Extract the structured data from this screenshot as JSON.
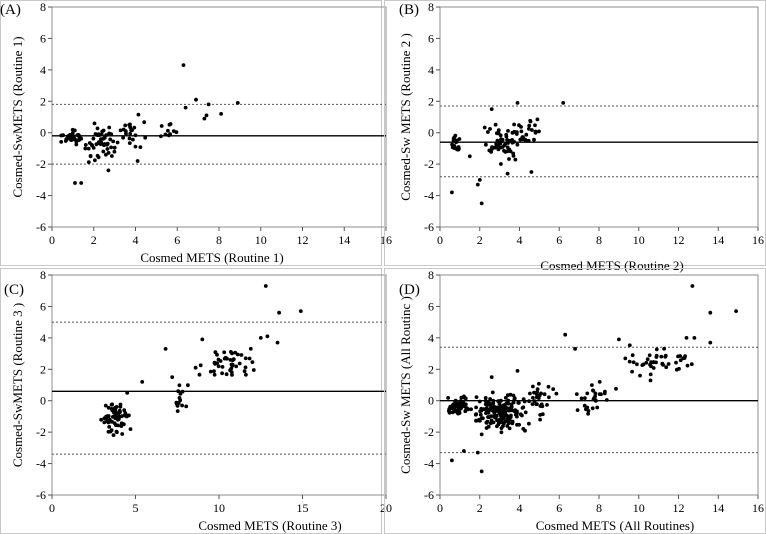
{
  "chart_data": [
    {
      "type": "scatter",
      "panel_label": "(A)",
      "title": "",
      "xlabel": "Cosmed METS (Routine 1)",
      "ylabel": "Cosmed-SwMETS (Routine 1)",
      "xlim": [
        0,
        16
      ],
      "ylim": [
        -6,
        8
      ],
      "xticks": [
        "0",
        "2",
        "4",
        "6",
        "8",
        "10",
        "12",
        "14",
        "16"
      ],
      "yticks": [
        "8",
        "6",
        "4",
        "2",
        "0",
        "-2",
        "-4",
        "-6"
      ],
      "mean_line": -0.2,
      "limits_of_agreement": [
        1.8,
        -2.0
      ],
      "seed": 11,
      "clusters": [
        {
          "n": 40,
          "x": [
            0.4,
            1.6
          ],
          "y": [
            -0.9,
            0.4
          ]
        },
        {
          "n": 55,
          "x": [
            1.4,
            3.2
          ],
          "y": [
            -2.3,
            0.8
          ]
        },
        {
          "n": 22,
          "x": [
            2.8,
            4.6
          ],
          "y": [
            -1.6,
            1.3
          ]
        },
        {
          "n": 10,
          "x": [
            4.5,
            6.5
          ],
          "y": [
            -0.8,
            1.0
          ]
        }
      ],
      "points": [
        [
          1.1,
          -3.2
        ],
        [
          1.4,
          -3.2
        ],
        [
          6.3,
          4.3
        ],
        [
          6.9,
          2.1
        ],
        [
          7.5,
          1.8
        ],
        [
          8.9,
          1.9
        ],
        [
          7.4,
          1.1
        ],
        [
          8.1,
          1.2
        ],
        [
          6.4,
          1.6
        ],
        [
          7.3,
          0.9
        ],
        [
          2.7,
          -2.4
        ],
        [
          4.1,
          -1.8
        ]
      ]
    },
    {
      "type": "scatter",
      "panel_label": "(B)",
      "title": "",
      "xlabel": "Cosmed METS (Routine 2)",
      "ylabel": "Cosmed-Sw METS (Routine 2 )",
      "xlim": [
        0,
        16
      ],
      "ylim": [
        -6,
        8
      ],
      "xticks": [
        "0",
        "2",
        "4",
        "6",
        "8",
        "10",
        "12",
        "14",
        "16"
      ],
      "yticks": [
        "8",
        "6",
        "4",
        "2",
        "0",
        "-2",
        "-4",
        "-6"
      ],
      "mean_line": -0.6,
      "limits_of_agreement": [
        1.7,
        -2.8
      ],
      "seed": 23,
      "clusters": [
        {
          "n": 18,
          "x": [
            0.5,
            1.1
          ],
          "y": [
            -1.4,
            0.1
          ]
        },
        {
          "n": 60,
          "x": [
            2.0,
            4.4
          ],
          "y": [
            -2.2,
            1.0
          ]
        },
        {
          "n": 25,
          "x": [
            3.6,
            5.4
          ],
          "y": [
            -1.0,
            1.2
          ]
        }
      ],
      "points": [
        [
          0.6,
          -3.8
        ],
        [
          2.1,
          -4.5
        ],
        [
          1.9,
          -3.3
        ],
        [
          2.0,
          -3.0
        ],
        [
          2.6,
          1.5
        ],
        [
          3.9,
          1.9
        ],
        [
          6.2,
          1.9
        ],
        [
          3.4,
          -2.6
        ],
        [
          4.6,
          -2.5
        ],
        [
          1.5,
          -1.5
        ]
      ]
    },
    {
      "type": "scatter",
      "panel_label": "(C)",
      "title": "",
      "xlabel": "Cosmed METS (Routine 3)",
      "ylabel": "Cosmed-SwMETS (Routine 3 )",
      "xlim": [
        0,
        20
      ],
      "ylim": [
        -6,
        8
      ],
      "xticks": [
        "0",
        "5",
        "10",
        "15",
        "20"
      ],
      "yticks": [
        "8",
        "6",
        "4",
        "2",
        "0",
        "-2",
        "-4",
        "-6"
      ],
      "mean_line": 0.6,
      "limits_of_agreement": [
        5.0,
        -3.4
      ],
      "seed": 37,
      "clusters": [
        {
          "n": 70,
          "x": [
            2.8,
            4.8
          ],
          "y": [
            -2.4,
            0.3
          ]
        },
        {
          "n": 14,
          "x": [
            6.8,
            8.4
          ],
          "y": [
            -1.6,
            1.5
          ]
        },
        {
          "n": 45,
          "x": [
            8.5,
            12.5
          ],
          "y": [
            1.2,
            3.7
          ]
        }
      ],
      "points": [
        [
          12.8,
          7.3
        ],
        [
          13.6,
          5.6
        ],
        [
          14.9,
          5.7
        ],
        [
          13.5,
          3.7
        ],
        [
          12.5,
          4.0
        ],
        [
          12.9,
          4.1
        ],
        [
          6.8,
          3.3
        ],
        [
          9.0,
          3.9
        ],
        [
          8.6,
          2.1
        ],
        [
          7.2,
          1.5
        ],
        [
          4.5,
          0.5
        ],
        [
          5.4,
          1.2
        ]
      ]
    },
    {
      "type": "scatter",
      "panel_label": "(D)",
      "title": "",
      "xlabel": "Cosmed METS (All Routines)",
      "ylabel": "Cosmed-Sw METS (All Routinc )",
      "xlim": [
        0,
        16
      ],
      "ylim": [
        -6,
        8
      ],
      "xticks": [
        "0",
        "2",
        "4",
        "6",
        "8",
        "10",
        "12",
        "14",
        "16"
      ],
      "yticks": [
        "8",
        "6",
        "4",
        "2",
        "0",
        "-2",
        "-4",
        "-6"
      ],
      "mean_line": 0.0,
      "limits_of_agreement": [
        3.4,
        -3.3
      ],
      "seed": 53,
      "clusters": [
        {
          "n": 60,
          "x": [
            0.3,
            1.6
          ],
          "y": [
            -1.1,
            0.4
          ]
        },
        {
          "n": 170,
          "x": [
            1.4,
            4.8
          ],
          "y": [
            -2.5,
            1.0
          ]
        },
        {
          "n": 30,
          "x": [
            4.2,
            6.0
          ],
          "y": [
            -1.5,
            1.5
          ]
        },
        {
          "n": 28,
          "x": [
            6.5,
            9.0
          ],
          "y": [
            -1.6,
            1.6
          ]
        },
        {
          "n": 45,
          "x": [
            9.0,
            12.8
          ],
          "y": [
            1.2,
            3.8
          ]
        }
      ],
      "points": [
        [
          12.7,
          7.3
        ],
        [
          13.6,
          5.6
        ],
        [
          14.9,
          5.7
        ],
        [
          13.6,
          3.7
        ],
        [
          12.4,
          4.0
        ],
        [
          12.8,
          4.0
        ],
        [
          6.3,
          4.2
        ],
        [
          0.6,
          -3.8
        ],
        [
          2.1,
          -4.5
        ],
        [
          1.9,
          -3.3
        ],
        [
          1.2,
          -3.2
        ],
        [
          9.0,
          3.9
        ],
        [
          6.8,
          3.3
        ],
        [
          3.9,
          1.9
        ],
        [
          2.6,
          1.5
        ]
      ]
    }
  ]
}
